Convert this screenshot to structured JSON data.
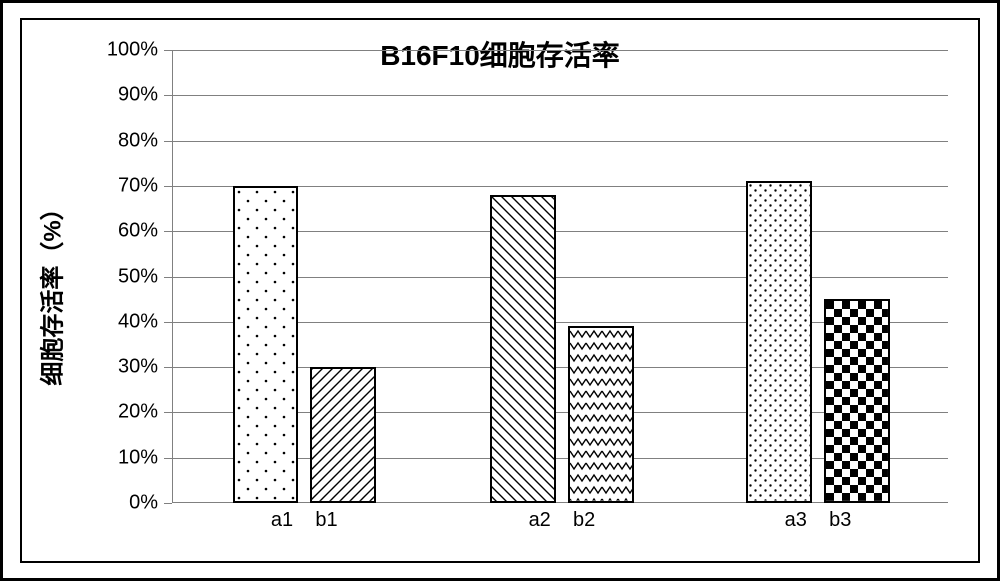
{
  "chart": {
    "type": "bar",
    "title": "B16F10细胞存活率",
    "title_fontsize": 28,
    "ylabel": "细胞存活率（%）",
    "ylabel_fontsize": 24,
    "ylim": [
      0,
      100
    ],
    "ytick_step": 10,
    "ytick_suffix": "%",
    "background_color": "#ffffff",
    "axis_color": "#808080",
    "grid_color": "#808080",
    "border_color": "#000000",
    "bar_border_color": "#000000",
    "bar_width_pct": 8.5,
    "groups": [
      {
        "pair_label": [
          "a1",
          "b1"
        ],
        "bars": [
          {
            "x_pct": 7.8,
            "value": 70,
            "pattern": "dots-sparse"
          },
          {
            "x_pct": 17.8,
            "value": 30,
            "pattern": "diag-right"
          }
        ]
      },
      {
        "pair_label": [
          "a2",
          "b2"
        ],
        "bars": [
          {
            "x_pct": 41.0,
            "value": 68,
            "pattern": "diag-left"
          },
          {
            "x_pct": 51.0,
            "value": 39,
            "pattern": "zigzag"
          }
        ]
      },
      {
        "pair_label": [
          "a3",
          "b3"
        ],
        "bars": [
          {
            "x_pct": 74.0,
            "value": 71,
            "pattern": "dots-dense"
          },
          {
            "x_pct": 84.0,
            "value": 45,
            "pattern": "checker"
          }
        ]
      }
    ],
    "patterns": {
      "fill": "#ffffff",
      "stroke": "#000000"
    }
  }
}
